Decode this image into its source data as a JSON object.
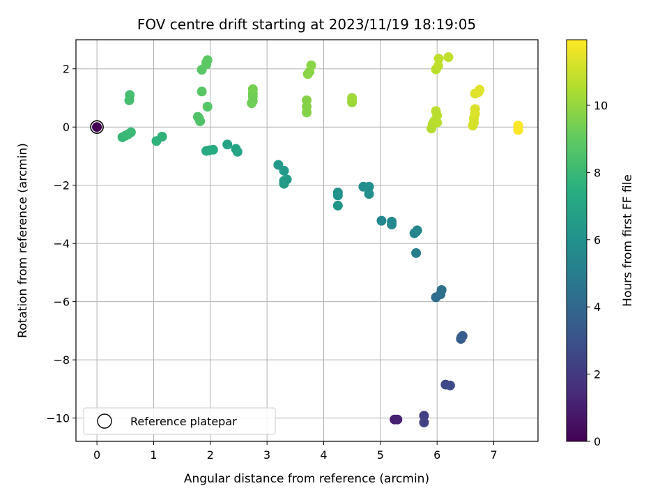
{
  "chart_data": {
    "type": "scatter",
    "title": "FOV centre drift starting at 2023/11/19 18:19:05",
    "xlabel": "Angular distance from reference (arcmin)",
    "ylabel": "Rotation from reference (arcmin)",
    "xlim": [
      -0.37,
      7.78
    ],
    "ylim": [
      -10.8,
      3.0
    ],
    "xticks": [
      0,
      1,
      2,
      3,
      4,
      5,
      6,
      7
    ],
    "yticks": [
      -10,
      -8,
      -6,
      -4,
      -2,
      0,
      2
    ],
    "grid": true,
    "legend": {
      "entries": [
        "Reference platepar"
      ],
      "placement": "lower-left"
    },
    "colorbar": {
      "label": "Hours from first FF file",
      "ticks": [
        0,
        2,
        4,
        6,
        8,
        10
      ],
      "range": [
        0,
        11.95
      ],
      "colormap": "viridis"
    },
    "reference_point": {
      "x": 0,
      "y": 0
    },
    "points": [
      [
        5.25,
        -10.05,
        1.0
      ],
      [
        5.3,
        -10.05,
        1.1
      ],
      [
        5.77,
        -9.92,
        2.2
      ],
      [
        5.77,
        -10.15,
        2.3
      ],
      [
        6.15,
        -8.85,
        2.6
      ],
      [
        6.23,
        -8.88,
        2.7
      ],
      [
        6.42,
        -7.28,
        3.4
      ],
      [
        6.43,
        -7.22,
        3.5
      ],
      [
        6.45,
        -7.18,
        3.5
      ],
      [
        5.98,
        -5.85,
        4.2
      ],
      [
        6.06,
        -5.75,
        4.3
      ],
      [
        6.08,
        -5.6,
        4.4
      ],
      [
        5.63,
        -4.33,
        5.0
      ],
      [
        5.63,
        -3.6,
        5.3
      ],
      [
        5.6,
        -3.65,
        5.3
      ],
      [
        5.65,
        -3.55,
        5.4
      ],
      [
        5.02,
        -3.22,
        5.5
      ],
      [
        5.2,
        -3.25,
        5.6
      ],
      [
        5.2,
        -3.35,
        5.6
      ],
      [
        4.7,
        -2.05,
        5.8
      ],
      [
        4.8,
        -2.05,
        5.9
      ],
      [
        4.8,
        -2.3,
        5.9
      ],
      [
        4.25,
        -2.25,
        6.1
      ],
      [
        4.25,
        -2.35,
        6.1
      ],
      [
        4.25,
        -2.7,
        6.2
      ],
      [
        3.2,
        -1.3,
        6.4
      ],
      [
        3.3,
        -1.5,
        6.4
      ],
      [
        3.35,
        -1.8,
        6.5
      ],
      [
        3.3,
        -1.95,
        6.5
      ],
      [
        3.3,
        -1.85,
        6.5
      ],
      [
        2.3,
        -0.6,
        6.9
      ],
      [
        2.45,
        -0.75,
        7.0
      ],
      [
        2.48,
        -0.85,
        7.0
      ],
      [
        1.93,
        -0.82,
        7.2
      ],
      [
        1.98,
        -0.8,
        7.2
      ],
      [
        2.05,
        -0.78,
        7.3
      ],
      [
        1.05,
        -0.48,
        7.7
      ],
      [
        1.15,
        -0.33,
        7.7
      ],
      [
        0.45,
        -0.35,
        7.9
      ],
      [
        0.5,
        -0.3,
        7.9
      ],
      [
        0.55,
        -0.25,
        8.0
      ],
      [
        0.6,
        -0.18,
        8.0
      ],
      [
        0.57,
        0.92,
        8.3
      ],
      [
        0.58,
        1.1,
        8.3
      ],
      [
        1.8,
        0.3,
        8.6
      ],
      [
        1.82,
        0.2,
        8.6
      ],
      [
        1.78,
        0.35,
        8.6
      ],
      [
        1.95,
        0.7,
        8.7
      ],
      [
        1.85,
        1.22,
        8.8
      ],
      [
        1.85,
        1.97,
        8.8
      ],
      [
        1.93,
        2.15,
        8.9
      ],
      [
        1.95,
        2.3,
        8.9
      ],
      [
        1.93,
        2.22,
        8.9
      ],
      [
        2.73,
        0.82,
        9.3
      ],
      [
        2.75,
        0.9,
        9.3
      ],
      [
        2.75,
        1.05,
        9.3
      ],
      [
        2.75,
        1.15,
        9.3
      ],
      [
        2.75,
        1.3,
        9.4
      ],
      [
        3.7,
        0.5,
        9.7
      ],
      [
        3.7,
        0.7,
        9.7
      ],
      [
        3.7,
        0.92,
        9.7
      ],
      [
        3.72,
        1.82,
        9.8
      ],
      [
        3.75,
        1.9,
        9.8
      ],
      [
        3.78,
        2.12,
        9.8
      ],
      [
        4.5,
        0.85,
        10.1
      ],
      [
        4.5,
        0.9,
        10.1
      ],
      [
        4.5,
        1.0,
        10.2
      ],
      [
        5.9,
        -0.05,
        10.6
      ],
      [
        5.92,
        0.1,
        10.6
      ],
      [
        5.95,
        0.2,
        10.6
      ],
      [
        6.0,
        0.15,
        10.7
      ],
      [
        6.0,
        0.4,
        10.7
      ],
      [
        5.98,
        0.55,
        10.7
      ],
      [
        5.98,
        1.98,
        10.7
      ],
      [
        6.02,
        2.1,
        10.8
      ],
      [
        6.03,
        2.35,
        10.8
      ],
      [
        6.2,
        2.4,
        10.8
      ],
      [
        6.63,
        0.05,
        11.2
      ],
      [
        6.65,
        0.15,
        11.2
      ],
      [
        6.65,
        0.3,
        11.2
      ],
      [
        6.67,
        0.45,
        11.3
      ],
      [
        6.67,
        0.62,
        11.3
      ],
      [
        6.67,
        1.15,
        11.3
      ],
      [
        6.73,
        1.2,
        11.4
      ],
      [
        6.75,
        1.28,
        11.4
      ],
      [
        7.43,
        -0.1,
        11.9
      ],
      [
        7.43,
        0.05,
        11.9
      ]
    ]
  }
}
